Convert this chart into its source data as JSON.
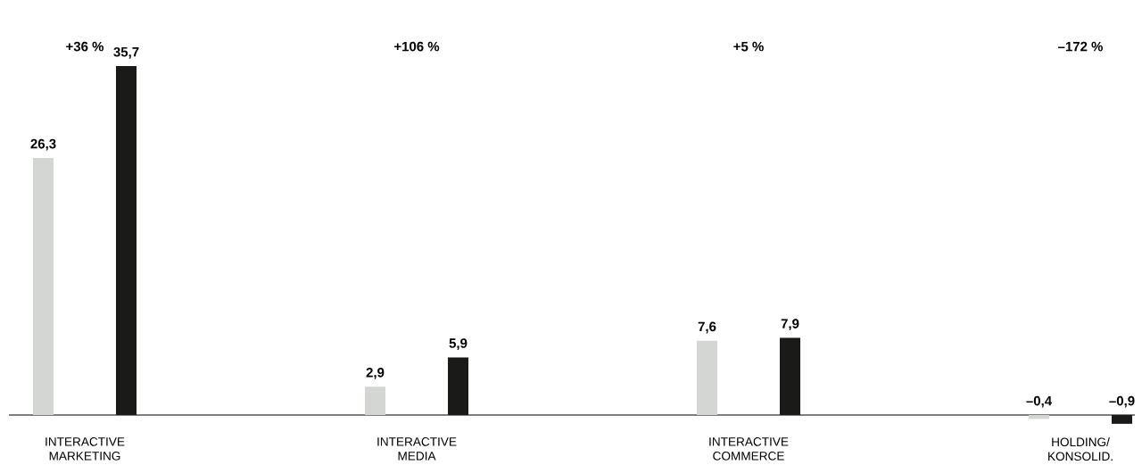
{
  "chart_data": {
    "type": "bar",
    "categories": [
      "INTERACTIVE MARKETING",
      "INTERACTIVE MEDIA",
      "INTERACTIVE COMMERCE",
      "HOLDING/ KONSOLID."
    ],
    "series": [
      {
        "color": "#d4d6d4",
        "values": [
          26.3,
          2.9,
          7.6,
          -0.4
        ],
        "value_labels": [
          "26,3",
          "2,9",
          "7,6",
          "–0,4"
        ]
      },
      {
        "color": "#1a1a18",
        "values": [
          35.7,
          5.9,
          7.9,
          -0.9
        ],
        "value_labels": [
          "35,7",
          "5,9",
          "7,9",
          "–0,9"
        ]
      }
    ],
    "annotations": [
      "+36 %",
      "+106 %",
      "+5 %",
      "–172 %"
    ]
  }
}
